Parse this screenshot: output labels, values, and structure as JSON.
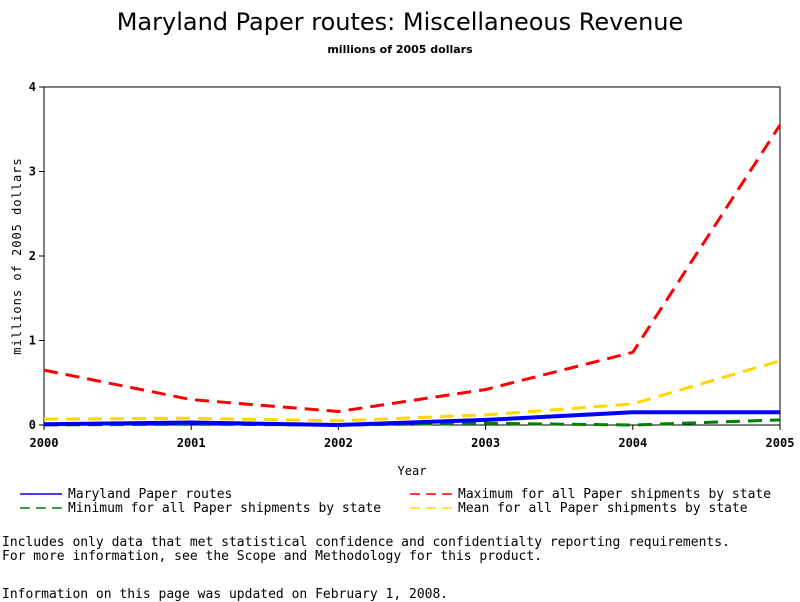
{
  "chart_data": {
    "type": "line",
    "title": "Maryland Paper routes: Miscellaneous Revenue",
    "subtitle": "millions of 2005 dollars",
    "xlabel": "Year",
    "ylabel": "millions of 2005 dollars",
    "x": [
      "2000",
      "2001",
      "2002",
      "2003",
      "2004",
      "2005"
    ],
    "x_ticks": [
      "2000",
      "2001",
      "2002",
      "2003",
      "2004",
      "2005"
    ],
    "y_ticks": [
      "0",
      "1",
      "2",
      "3",
      "4"
    ],
    "ylim": [
      0,
      4
    ],
    "grid": false,
    "legend_placement": "bottom",
    "series": [
      {
        "name": "Maryland Paper routes",
        "values": [
          0.01,
          0.03,
          0.0,
          0.06,
          0.15,
          0.15
        ],
        "color": "#0000ff",
        "style": "solid"
      },
      {
        "name": "Maximum for all Paper shipments by state",
        "values": [
          0.65,
          0.3,
          0.16,
          0.42,
          0.86,
          3.55
        ],
        "color": "#ff0000",
        "style": "dashed"
      },
      {
        "name": "Minimum for all Paper shipments by state",
        "values": [
          0.0,
          0.01,
          0.0,
          0.02,
          0.0,
          0.06
        ],
        "color": "#008000",
        "style": "dashed"
      },
      {
        "name": "Mean for all Paper shipments by state",
        "values": [
          0.07,
          0.08,
          0.05,
          0.12,
          0.25,
          0.76
        ],
        "color": "#ffd700",
        "style": "dashed"
      }
    ]
  },
  "notes": {
    "line1": "Includes only data that met statistical confidence and confidentialty reporting requirements.",
    "line2": "For more information, see the Scope and Methodology for this product.",
    "updated": "Information on this page was updated on February 1, 2008."
  }
}
